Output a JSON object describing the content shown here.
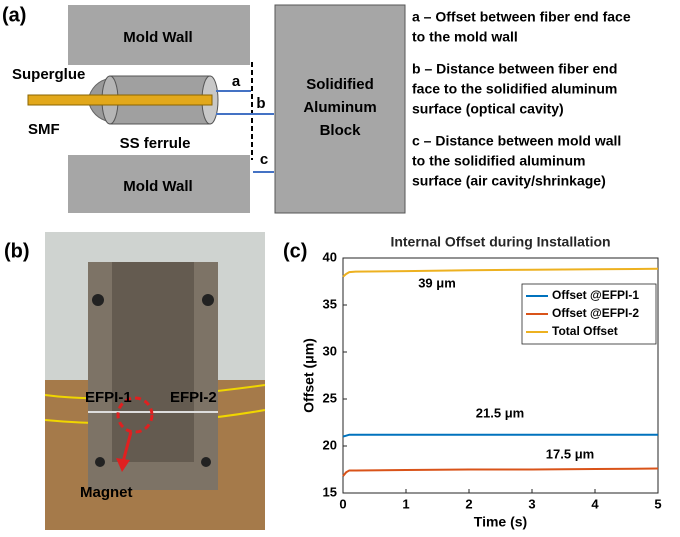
{
  "panel_a": {
    "label": "(a)",
    "mold_wall_top": "Mold Wall",
    "mold_wall_bottom": "Mold Wall",
    "superglue": "Superglue",
    "smf": "SMF",
    "ferrule": "SS ferrule",
    "a": "a",
    "b": "b",
    "c": "c",
    "block": [
      "Solidified",
      "Aluminum",
      "Block"
    ],
    "notes": [
      [
        "a – Offset between fiber end face",
        "to the mold wall"
      ],
      [
        "b – Distance between fiber end",
        "face to the solidified aluminum",
        "surface (optical cavity)"
      ],
      [
        "c – Distance between mold wall",
        "to the solidified aluminum",
        "surface (air cavity/shrinkage)"
      ]
    ]
  },
  "panel_b": {
    "label": "(b)",
    "efpi_1": "EFPI-1",
    "efpi_2": "EFPI-2",
    "magnet": "Magnet"
  },
  "panel_c": {
    "label": "(c)"
  },
  "chart_data": {
    "type": "line",
    "title": "Internal Offset during Installation",
    "x_label": "Time (s)",
    "y_label": "Offset (μm)",
    "x": [
      0,
      0.05,
      0.1,
      0.2,
      1,
      2,
      3,
      4,
      5
    ],
    "series": [
      {
        "name": "Offset @EFPI-1",
        "color": "#0072bd",
        "values": [
          21.0,
          21.1,
          21.2,
          21.2,
          21.2,
          21.2,
          21.2,
          21.2,
          21.2
        ]
      },
      {
        "name": "Offset @EFPI-2",
        "color": "#d95319",
        "values": [
          16.8,
          17.2,
          17.4,
          17.4,
          17.45,
          17.5,
          17.5,
          17.55,
          17.6
        ]
      },
      {
        "name": "Total Offset",
        "color": "#edb120",
        "values": [
          38.0,
          38.3,
          38.5,
          38.55,
          38.6,
          38.7,
          38.75,
          38.8,
          38.85
        ]
      }
    ],
    "xlim": [
      0,
      5
    ],
    "xticks": [
      0,
      1,
      2,
      3,
      4,
      5
    ],
    "ylim": [
      15,
      40
    ],
    "yticks": [
      15,
      20,
      25,
      30,
      35,
      40
    ],
    "grid": false,
    "legend": "upper right",
    "annotations": [
      "39 μm",
      "21.5 μm",
      "17.5 μm"
    ]
  }
}
